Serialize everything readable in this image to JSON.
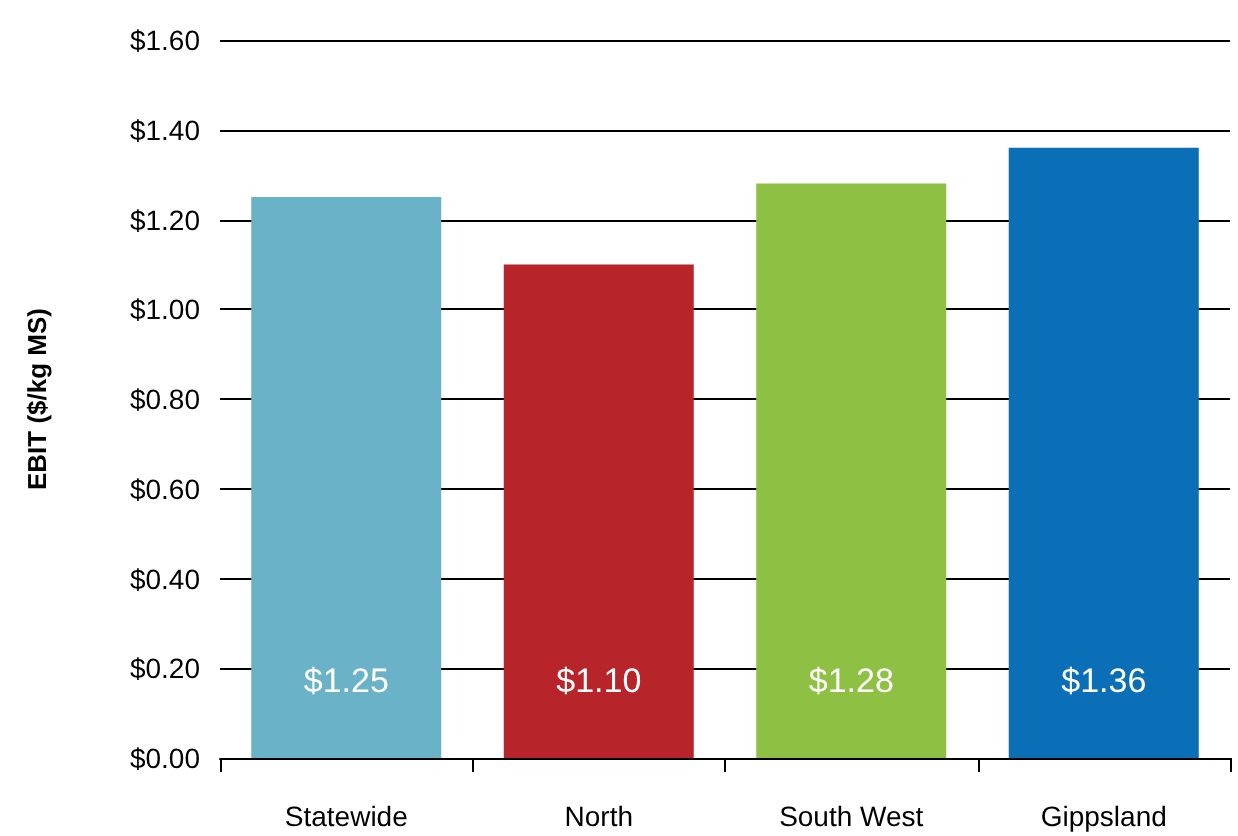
{
  "chart_data": {
    "type": "bar",
    "ylabel": "EBIT ($/kg MS)",
    "categories": [
      "Statewide",
      "North",
      "South West",
      "Gippsland"
    ],
    "values": [
      1.25,
      1.1,
      1.28,
      1.36
    ],
    "colors": [
      "#6ab2c8",
      "#b7242a",
      "#8dc043",
      "#0a6fb7"
    ],
    "value_labels": [
      "$1.25",
      "$1.10",
      "$1.28",
      "$1.36"
    ],
    "ylim": [
      0,
      1.6
    ],
    "yticks": [
      {
        "value": 0,
        "label": "$0.00"
      },
      {
        "value": 0.2,
        "label": "$0.20"
      },
      {
        "value": 0.4,
        "label": "$0.40"
      },
      {
        "value": 0.6,
        "label": "$0.60"
      },
      {
        "value": 0.8,
        "label": "$0.80"
      },
      {
        "value": 1.0,
        "label": "$1.00"
      },
      {
        "value": 1.2,
        "label": "$1.20"
      },
      {
        "value": 1.4,
        "label": "$1.40"
      },
      {
        "value": 1.6,
        "label": "$1.60"
      }
    ],
    "grid": "y"
  }
}
